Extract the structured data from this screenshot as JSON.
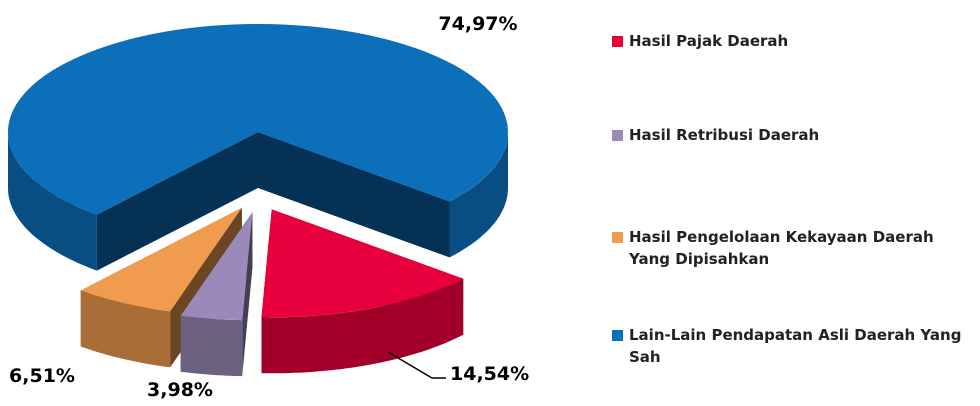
{
  "chart_data": {
    "type": "pie",
    "categories": [
      "Hasil Pajak Daerah",
      "Hasil Retribusi Daerah",
      "Hasil Pengelolaan Kekayaan Daerah Yang Dipisahkan",
      "Lain-Lain Pendapatan Asli Daerah Yang Sah"
    ],
    "values": [
      14.54,
      3.98,
      6.51,
      74.97
    ],
    "value_labels": [
      "14,54%",
      "3,98%",
      "6,51%",
      "74,97%"
    ],
    "colors": [
      "#e8003d",
      "#9b8ab9",
      "#f19b4e",
      "#0b6fba"
    ],
    "legend": "right"
  }
}
